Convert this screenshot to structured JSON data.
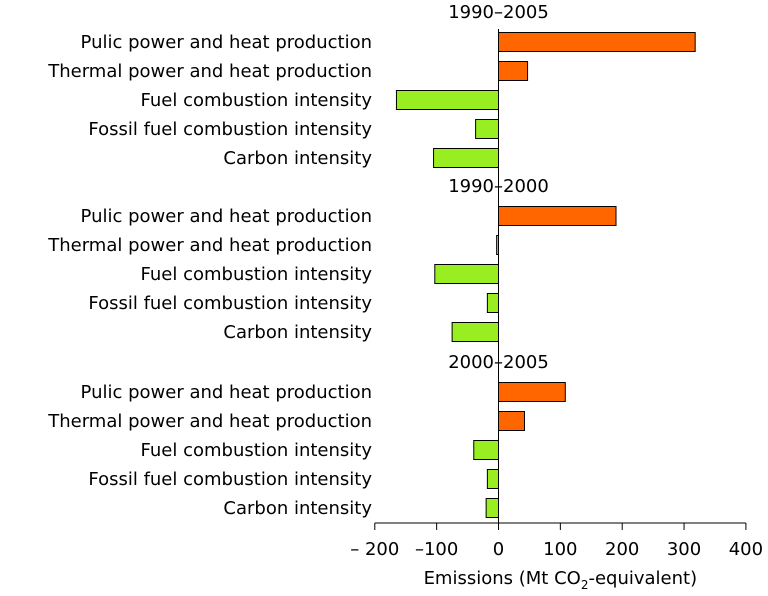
{
  "chart_data": {
    "type": "bar",
    "orientation": "horizontal",
    "xlabel_prefix": "Emissions (Mt CO",
    "xlabel_sub": "2",
    "xlabel_suffix": "-equivalent)",
    "xlim": [
      -200,
      400
    ],
    "xticks": [
      -200,
      -100,
      0,
      100,
      200,
      300,
      400
    ],
    "xtick_labels": [
      "– 200",
      "–100",
      "0",
      "100",
      "200",
      "300",
      "400"
    ],
    "grid": false,
    "legend": "none",
    "colors": {
      "positive": "#ff6600",
      "negative": "#99ee22",
      "outline": "#000000"
    },
    "categories": [
      "Pulic power and heat production",
      "Thermal power and heat production",
      "Fuel combustion intensity",
      "Fossil fuel combustion intensity",
      "Carbon intensity"
    ],
    "panels": [
      {
        "title": "1990–2005",
        "values": [
          318,
          47,
          -165,
          -37,
          -105
        ]
      },
      {
        "title": "1990–2000",
        "values": [
          190,
          -3,
          -103,
          -18,
          -75
        ]
      },
      {
        "title": "2000–2005",
        "values": [
          108,
          42,
          -40,
          -18,
          -20
        ]
      }
    ]
  }
}
